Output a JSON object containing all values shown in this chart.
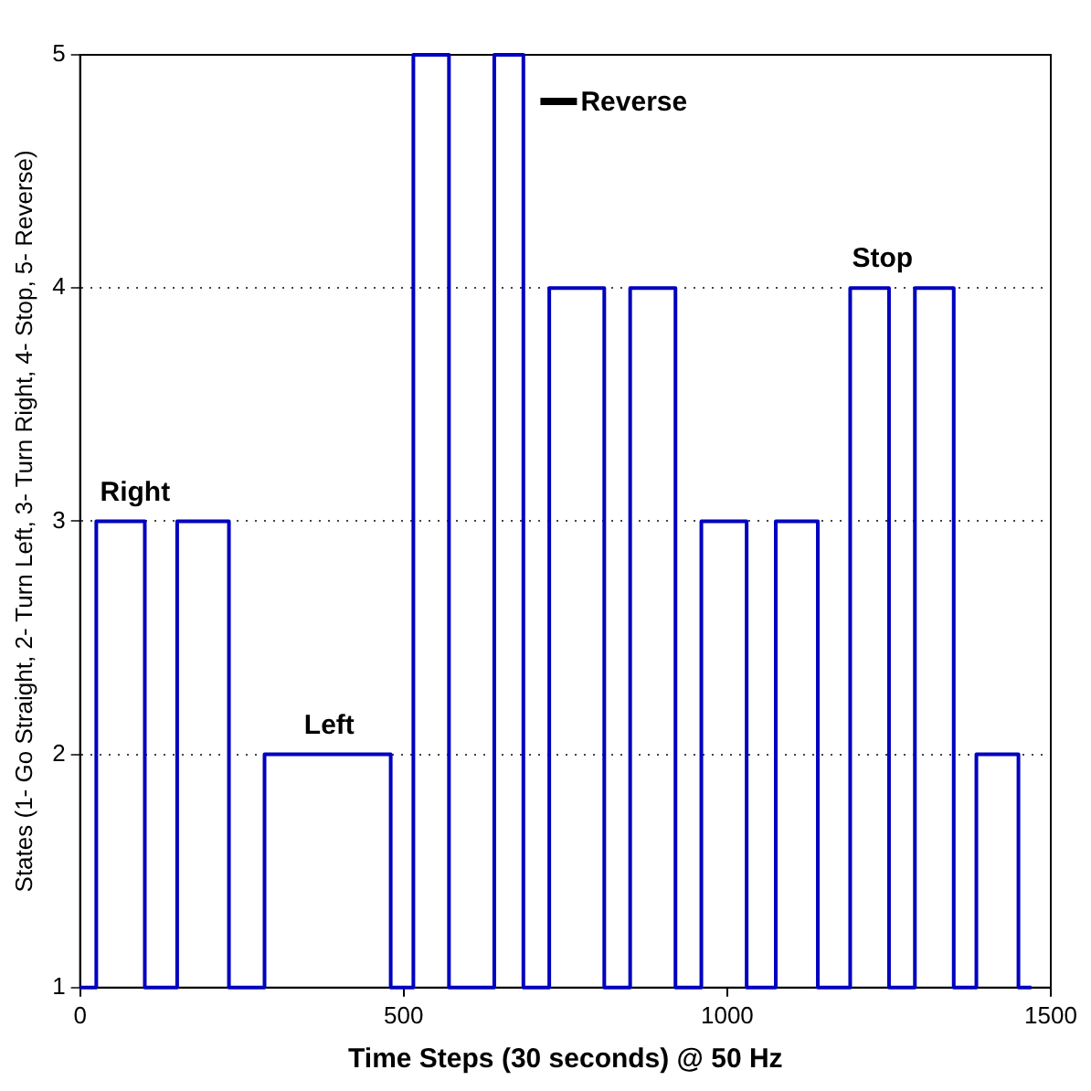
{
  "chart_data": {
    "type": "step",
    "xlabel": "Time Steps (30 seconds) @ 50 Hz",
    "ylabel": "States (1- Go Straight, 2- Turn Left, 3- Turn Right, 4- Stop, 5- Reverse)",
    "x": [
      0,
      25,
      100,
      150,
      230,
      285,
      480,
      515,
      570,
      640,
      685,
      725,
      810,
      850,
      920,
      960,
      1030,
      1075,
      1140,
      1190,
      1250,
      1290,
      1350,
      1385,
      1450,
      1470
    ],
    "series": [
      {
        "color": "#0000c0",
        "values": [
          1,
          3,
          1,
          3,
          1,
          2,
          1,
          5,
          1,
          5,
          1,
          4,
          1,
          4,
          1,
          3,
          1,
          3,
          1,
          4,
          1,
          4,
          1,
          2,
          1,
          1
        ]
      }
    ],
    "xlim": [
      0,
      1500
    ],
    "xticks": [
      0,
      500,
      1000,
      1500
    ],
    "ylim": [
      1,
      5
    ],
    "yticks": [
      1,
      2,
      3,
      4,
      5
    ],
    "grid": "y",
    "legend": false,
    "annotations": [
      {
        "text": "Right",
        "x": 85,
        "y": 3
      },
      {
        "text": "Left",
        "x": 385,
        "y": 2
      },
      {
        "text": "Reverse",
        "x": 700,
        "y": 4.8
      },
      {
        "text": "Stop",
        "x": 1240,
        "y": 4
      }
    ]
  }
}
